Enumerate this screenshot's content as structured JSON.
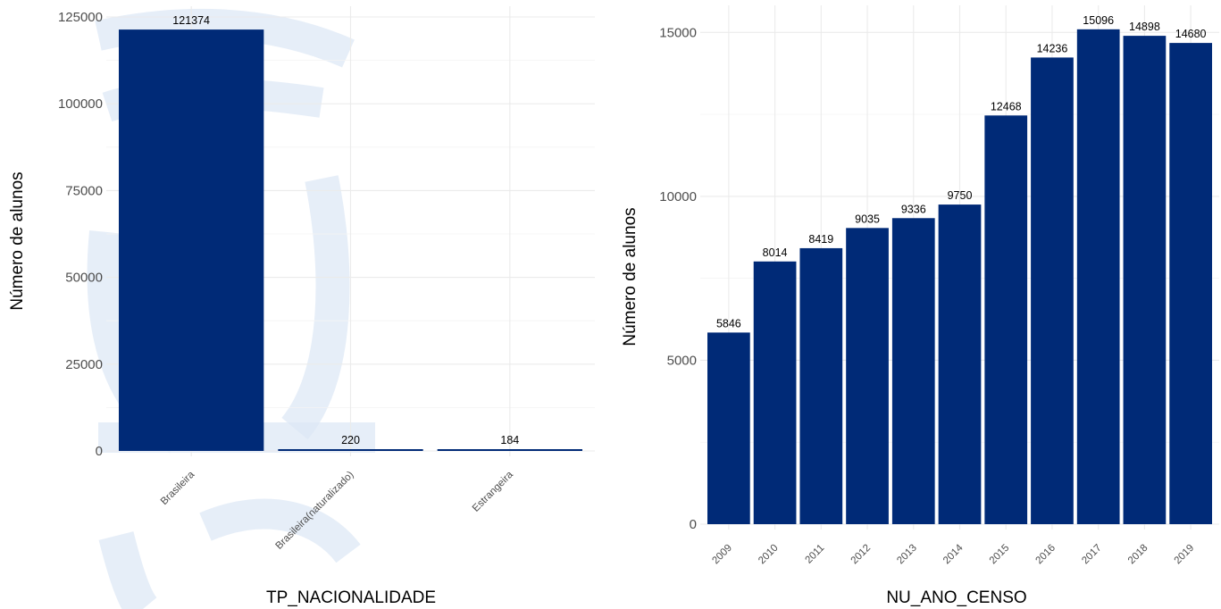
{
  "colors": {
    "bar": "#002A77",
    "watermark": "#dce7f5"
  },
  "chart_data": [
    {
      "type": "bar",
      "categories": [
        "Brasileira",
        "Brasileira(naturalizado)",
        "Estrangeira"
      ],
      "values": [
        121374,
        220,
        184
      ],
      "data_labels": [
        "121374",
        "220",
        "184"
      ],
      "title": "",
      "xlabel": "TP_NACIONALIDADE",
      "ylabel": "Número de alunos",
      "ylim": [
        0,
        125000
      ],
      "yticks": [
        0,
        25000,
        50000,
        75000,
        100000,
        125000
      ],
      "ytick_labels": [
        "0",
        "25000",
        "50000",
        "75000",
        "100000",
        "125000"
      ],
      "grid": true
    },
    {
      "type": "bar",
      "categories": [
        "2009",
        "2010",
        "2011",
        "2012",
        "2013",
        "2014",
        "2015",
        "2016",
        "2017",
        "2018",
        "2019"
      ],
      "values": [
        5846,
        8014,
        8419,
        9035,
        9336,
        9750,
        12468,
        14236,
        15096,
        14898,
        14680
      ],
      "data_labels": [
        "5846",
        "8014",
        "8419",
        "9035",
        "9336",
        "9750",
        "12468",
        "14236",
        "15096",
        "14898",
        "14680"
      ],
      "title": "",
      "xlabel": "NU_ANO_CENSO",
      "ylabel": "Número de alunos",
      "ylim": [
        0,
        15500
      ],
      "yticks": [
        0,
        5000,
        10000,
        15000
      ],
      "ytick_labels": [
        "0",
        "5000",
        "10000",
        "15000"
      ],
      "grid": true
    }
  ]
}
